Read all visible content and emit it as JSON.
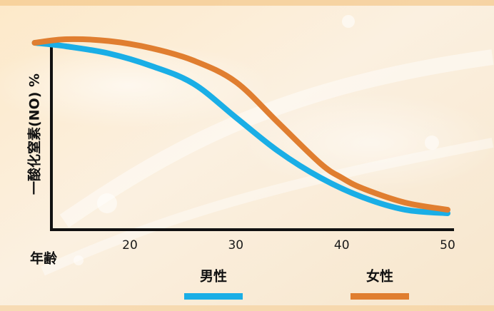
{
  "chart_data": {
    "type": "line",
    "ylabel": "一酸化窒素(NO) %",
    "xlabel": "年齢",
    "xlim": [
      10,
      50
    ],
    "ylim": [
      0,
      100
    ],
    "x_ticks": [
      20,
      30,
      40,
      50
    ],
    "x_tick_labels": [
      "20",
      "30",
      "40",
      "50"
    ],
    "y_ticks_shown": false,
    "grid": false,
    "legend_position": "bottom",
    "series": [
      {
        "name": "男性",
        "color": "#1aaee6",
        "x": [
          11,
          14,
          18,
          22,
          26,
          30,
          34,
          38,
          42,
          46,
          50
        ],
        "y": [
          100,
          98,
          94,
          87,
          77,
          58,
          39,
          24,
          13,
          6,
          4
        ]
      },
      {
        "name": "女性",
        "color": "#e07e30",
        "x": [
          11,
          14,
          18,
          22,
          26,
          30,
          34,
          38,
          40,
          42,
          46,
          50
        ],
        "y": [
          100,
          102,
          101,
          97,
          90,
          78,
          55,
          32,
          24,
          18,
          10,
          6
        ]
      }
    ]
  }
}
